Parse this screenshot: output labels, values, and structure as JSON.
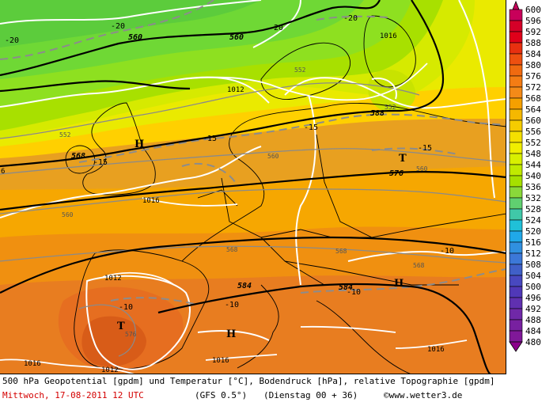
{
  "legend": {
    "min": 480,
    "max": 600,
    "step": 4,
    "labels": [
      "600",
      "596",
      "592",
      "588",
      "584",
      "580",
      "576",
      "572",
      "568",
      "564",
      "560",
      "556",
      "552",
      "548",
      "544",
      "540",
      "536",
      "532",
      "528",
      "524",
      "520",
      "516",
      "512",
      "508",
      "504",
      "500",
      "496",
      "492",
      "488",
      "484",
      "480"
    ],
    "top_color": "#c8005a",
    "bottom_color": "#8b008b"
  },
  "map": {
    "isobar_labels": [
      "1016",
      "1012",
      "1016",
      "1012",
      "1016",
      "1012",
      "1016",
      "1016"
    ],
    "geopotential_labels": [
      "560",
      "560",
      "568",
      "576",
      "584",
      "584",
      "588"
    ],
    "topography_labels": [
      "552",
      "552",
      "552",
      "560",
      "560",
      "560",
      "568",
      "568",
      "568",
      "576"
    ],
    "temperature_labels": [
      "-20",
      "-20",
      "-20",
      "-20",
      "-15",
      "-15",
      "-15",
      "-15",
      "-10",
      "-10",
      "-10",
      "-10"
    ],
    "pressure_centers": [
      "H",
      "H",
      "H",
      "T",
      "T"
    ],
    "edge_label": "6"
  },
  "footer": {
    "description": "500 hPa Geopotential [gpdm] und Temperatur [°C], Bodendruck [hPa], relative Topographie [gpdm]",
    "date": "Mittwoch, 17-08-2011  12 UTC",
    "model": "(GFS 0.5°)",
    "run": "(Dienstag 00 + 36)",
    "copyright": "©www.wetter3.de"
  }
}
